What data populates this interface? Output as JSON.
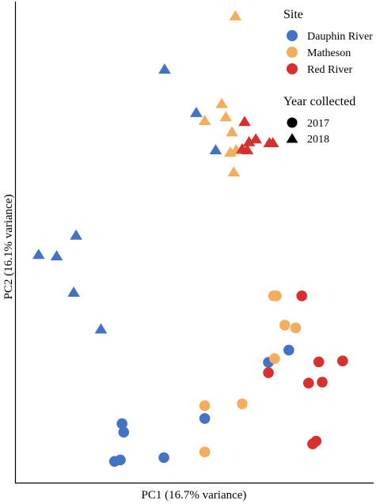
{
  "chart_data": {
    "type": "scatter",
    "xlabel": "PC1 (16.7% variance)",
    "ylabel": "PC2 (16.1% variance)",
    "xlim": [
      0,
      100
    ],
    "ylim": [
      0,
      100
    ],
    "grid": false,
    "legend_position": "top-right",
    "legend": {
      "color_title": "Site",
      "shape_title": "Year collected",
      "shapes": [
        {
          "year": "2017",
          "marker": "circle"
        },
        {
          "year": "2018",
          "marker": "triangle"
        }
      ]
    },
    "series": [
      {
        "name": "Dauphin River",
        "color": "#4472C4",
        "points": [
          {
            "x": 42.3,
            "y": 86.7,
            "year": "2018"
          },
          {
            "x": 51.6,
            "y": 77.5,
            "year": "2018"
          },
          {
            "x": 57.3,
            "y": 69.6,
            "year": "2018"
          },
          {
            "x": 16.3,
            "y": 51.5,
            "year": "2018"
          },
          {
            "x": 5.3,
            "y": 47.4,
            "year": "2018"
          },
          {
            "x": 10.6,
            "y": 47.1,
            "year": "2018"
          },
          {
            "x": 15.6,
            "y": 39.4,
            "year": "2018"
          },
          {
            "x": 23.6,
            "y": 31.6,
            "year": "2018"
          },
          {
            "x": 78.8,
            "y": 27.1,
            "year": "2017"
          },
          {
            "x": 72.8,
            "y": 24.5,
            "year": "2017"
          },
          {
            "x": 29.8,
            "y": 11.5,
            "year": "2017"
          },
          {
            "x": 30.3,
            "y": 9.7,
            "year": "2017"
          },
          {
            "x": 54.1,
            "y": 12.6,
            "year": "2017"
          },
          {
            "x": 42.1,
            "y": 4.3,
            "year": "2017"
          },
          {
            "x": 29.3,
            "y": 3.8,
            "year": "2017"
          },
          {
            "x": 27.6,
            "y": 3.5,
            "year": "2017"
          }
        ]
      },
      {
        "name": "Matheson",
        "color": "#F4AE5B",
        "points": [
          {
            "x": 63.1,
            "y": 98.0,
            "year": "2018"
          },
          {
            "x": 59.1,
            "y": 79.4,
            "year": "2018"
          },
          {
            "x": 60.3,
            "y": 76.6,
            "year": "2018"
          },
          {
            "x": 54.1,
            "y": 75.8,
            "year": "2018"
          },
          {
            "x": 62.1,
            "y": 73.4,
            "year": "2018"
          },
          {
            "x": 61.6,
            "y": 69.1,
            "year": "2018"
          },
          {
            "x": 63.3,
            "y": 69.6,
            "year": "2018"
          },
          {
            "x": 62.6,
            "y": 64.9,
            "year": "2018"
          },
          {
            "x": 74.3,
            "y": 38.6,
            "year": "2017"
          },
          {
            "x": 75.1,
            "y": 38.6,
            "year": "2017"
          },
          {
            "x": 77.6,
            "y": 32.4,
            "year": "2017"
          },
          {
            "x": 80.8,
            "y": 31.8,
            "year": "2017"
          },
          {
            "x": 74.6,
            "y": 25.3,
            "year": "2017"
          },
          {
            "x": 65.1,
            "y": 15.7,
            "year": "2017"
          },
          {
            "x": 54.1,
            "y": 15.3,
            "year": "2017"
          },
          {
            "x": 54.1,
            "y": 5.5,
            "year": "2017"
          }
        ]
      },
      {
        "name": "Red River",
        "color": "#D7302F",
        "points": [
          {
            "x": 65.8,
            "y": 75.6,
            "year": "2018"
          },
          {
            "x": 69.1,
            "y": 71.9,
            "year": "2018"
          },
          {
            "x": 67.1,
            "y": 71.3,
            "year": "2018"
          },
          {
            "x": 73.1,
            "y": 71.1,
            "year": "2018"
          },
          {
            "x": 74.1,
            "y": 71.1,
            "year": "2018"
          },
          {
            "x": 65.1,
            "y": 69.8,
            "year": "2018"
          },
          {
            "x": 66.6,
            "y": 69.6,
            "year": "2018"
          },
          {
            "x": 82.6,
            "y": 38.6,
            "year": "2017"
          },
          {
            "x": 87.6,
            "y": 24.6,
            "year": "2017"
          },
          {
            "x": 94.6,
            "y": 24.8,
            "year": "2017"
          },
          {
            "x": 72.8,
            "y": 22.3,
            "year": "2017"
          },
          {
            "x": 84.6,
            "y": 20.1,
            "year": "2017"
          },
          {
            "x": 88.6,
            "y": 20.3,
            "year": "2017"
          },
          {
            "x": 86.8,
            "y": 7.8,
            "year": "2017"
          },
          {
            "x": 85.8,
            "y": 7.2,
            "year": "2017"
          }
        ]
      }
    ]
  }
}
